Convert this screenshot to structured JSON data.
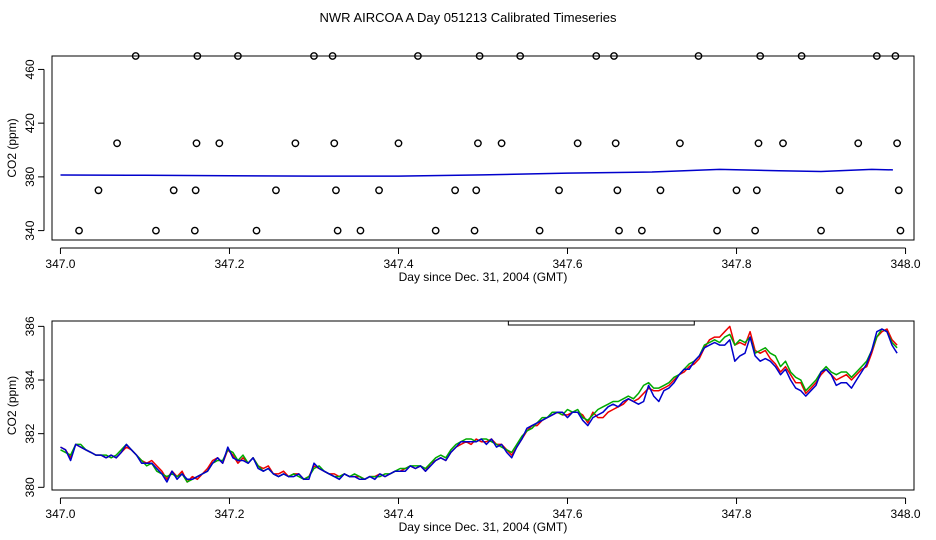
{
  "title": "NWR AIRCOA A  Day 051213  Calibrated Timeseries",
  "chart_data": [
    {
      "type": "scatter",
      "xlabel": "Day since Dec. 31, 2004 (GMT)",
      "ylabel": "CO2 (ppm)",
      "xlim": [
        346.99,
        348.01
      ],
      "ylim": [
        333,
        470
      ],
      "x_ticks": [
        "347.0",
        "347.2",
        "347.4",
        "347.6",
        "347.8",
        "348.0"
      ],
      "y_ticks": [
        "340",
        "380",
        "420",
        "460"
      ],
      "grid": false,
      "series": [
        {
          "marker": "open-circle",
          "color": "#000000",
          "points": [
            [
              347.022,
              340
            ],
            [
              347.045,
              370
            ],
            [
              347.067,
              405
            ],
            [
              347.089,
              470
            ],
            [
              347.113,
              340
            ],
            [
              347.134,
              370
            ],
            [
              347.159,
              340
            ],
            [
              347.16,
              370
            ],
            [
              347.161,
              405
            ],
            [
              347.162,
              470
            ],
            [
              347.188,
              405
            ],
            [
              347.21,
              470
            ],
            [
              347.232,
              340
            ],
            [
              347.255,
              370
            ],
            [
              347.278,
              405
            ],
            [
              347.3,
              470
            ],
            [
              347.322,
              470
            ],
            [
              347.324,
              405
            ],
            [
              347.326,
              370
            ],
            [
              347.328,
              340
            ],
            [
              347.355,
              340
            ],
            [
              347.377,
              370
            ],
            [
              347.4,
              405
            ],
            [
              347.423,
              470
            ],
            [
              347.444,
              340
            ],
            [
              347.467,
              370
            ],
            [
              347.49,
              340
            ],
            [
              347.492,
              370
            ],
            [
              347.494,
              405
            ],
            [
              347.496,
              470
            ],
            [
              347.522,
              405
            ],
            [
              347.544,
              470
            ],
            [
              347.567,
              340
            ],
            [
              347.59,
              370
            ],
            [
              347.612,
              405
            ],
            [
              347.634,
              470
            ],
            [
              347.655,
              470
            ],
            [
              347.657,
              405
            ],
            [
              347.659,
              370
            ],
            [
              347.661,
              340
            ],
            [
              347.688,
              340
            ],
            [
              347.71,
              370
            ],
            [
              347.733,
              405
            ],
            [
              347.755,
              470
            ],
            [
              347.777,
              340
            ],
            [
              347.8,
              370
            ],
            [
              347.822,
              340
            ],
            [
              347.824,
              370
            ],
            [
              347.826,
              405
            ],
            [
              347.828,
              470
            ],
            [
              347.855,
              405
            ],
            [
              347.877,
              470
            ],
            [
              347.9,
              340
            ],
            [
              347.922,
              370
            ],
            [
              347.944,
              405
            ],
            [
              347.966,
              470
            ],
            [
              347.988,
              470
            ],
            [
              347.99,
              405
            ],
            [
              347.992,
              370
            ],
            [
              347.994,
              340
            ]
          ]
        },
        {
          "marker": "line",
          "color": "#0000cc",
          "points": [
            [
              347.0,
              381.4
            ],
            [
              347.1,
              381.2
            ],
            [
              347.2,
              380.9
            ],
            [
              347.3,
              380.6
            ],
            [
              347.4,
              380.6
            ],
            [
              347.5,
              381.5
            ],
            [
              347.6,
              382.8
            ],
            [
              347.7,
              383.6
            ],
            [
              347.78,
              385.6
            ],
            [
              347.85,
              384.6
            ],
            [
              347.9,
              384.0
            ],
            [
              347.96,
              385.6
            ],
            [
              347.985,
              385.2
            ]
          ]
        }
      ]
    },
    {
      "type": "line",
      "xlabel": "Day since Dec. 31, 2004 (GMT)",
      "ylabel": "CO2 (ppm)",
      "xlim": [
        346.99,
        348.01
      ],
      "ylim": [
        379.9,
        386.2
      ],
      "x_ticks": [
        "347.0",
        "347.2",
        "347.4",
        "347.6",
        "347.8",
        "348.0"
      ],
      "y_ticks": [
        "380",
        "382",
        "384",
        "386"
      ],
      "grid": false,
      "marker_bar": [
        347.53,
        347.75
      ],
      "x": [
        347.0,
        347.006,
        347.012,
        347.018,
        347.024,
        347.03,
        347.036,
        347.042,
        347.048,
        347.054,
        347.06,
        347.066,
        347.072,
        347.078,
        347.084,
        347.09,
        347.096,
        347.102,
        347.108,
        347.114,
        347.12,
        347.126,
        347.132,
        347.138,
        347.144,
        347.15,
        347.156,
        347.162,
        347.168,
        347.174,
        347.18,
        347.186,
        347.192,
        347.198,
        347.204,
        347.21,
        347.216,
        347.222,
        347.228,
        347.234,
        347.24,
        347.246,
        347.252,
        347.258,
        347.264,
        347.27,
        347.276,
        347.282,
        347.288,
        347.294,
        347.3,
        347.306,
        347.312,
        347.318,
        347.324,
        347.33,
        347.336,
        347.342,
        347.348,
        347.354,
        347.36,
        347.366,
        347.372,
        347.378,
        347.384,
        347.39,
        347.396,
        347.402,
        347.408,
        347.414,
        347.42,
        347.426,
        347.432,
        347.438,
        347.444,
        347.45,
        347.456,
        347.462,
        347.468,
        347.474,
        347.48,
        347.486,
        347.492,
        347.498,
        347.504,
        347.51,
        347.516,
        347.522,
        347.528,
        347.534,
        347.54,
        347.546,
        347.552,
        347.558,
        347.564,
        347.57,
        347.576,
        347.582,
        347.588,
        347.594,
        347.6,
        347.606,
        347.612,
        347.618,
        347.624,
        347.63,
        347.636,
        347.642,
        347.648,
        347.654,
        347.66,
        347.666,
        347.672,
        347.678,
        347.684,
        347.69,
        347.696,
        347.702,
        347.708,
        347.714,
        347.72,
        347.726,
        347.732,
        347.738,
        347.744,
        347.75,
        347.756,
        347.762,
        347.768,
        347.774,
        347.78,
        347.786,
        347.792,
        347.798,
        347.804,
        347.81,
        347.816,
        347.822,
        347.828,
        347.834,
        347.84,
        347.846,
        347.852,
        347.858,
        347.864,
        347.87,
        347.876,
        347.882,
        347.888,
        347.894,
        347.9,
        347.906,
        347.912,
        347.918,
        347.924,
        347.93,
        347.936,
        347.942,
        347.948,
        347.954,
        347.96,
        347.966,
        347.972,
        347.978,
        347.984,
        347.99
      ],
      "series": [
        {
          "color": "#ee0000",
          "values": [
            381.5,
            381.4,
            381.1,
            381.6,
            381.5,
            381.4,
            381.3,
            381.2,
            381.2,
            381.1,
            381.2,
            381.1,
            381.3,
            381.5,
            381.4,
            381.2,
            381.0,
            380.9,
            381.0,
            380.8,
            380.6,
            380.3,
            380.6,
            380.4,
            380.6,
            380.2,
            380.4,
            380.3,
            380.5,
            380.7,
            381.0,
            381.1,
            380.9,
            381.4,
            381.2,
            380.9,
            381.1,
            380.9,
            381.1,
            380.8,
            380.7,
            380.8,
            380.5,
            380.5,
            380.6,
            380.4,
            380.5,
            380.5,
            380.3,
            380.4,
            380.8,
            380.7,
            380.6,
            380.5,
            380.5,
            380.4,
            380.5,
            380.4,
            380.4,
            380.4,
            380.3,
            380.4,
            380.4,
            380.5,
            380.4,
            380.5,
            380.6,
            380.6,
            380.7,
            380.8,
            380.7,
            380.8,
            380.6,
            380.9,
            381.0,
            381.1,
            381.0,
            381.3,
            381.5,
            381.6,
            381.7,
            381.6,
            381.8,
            381.7,
            381.7,
            381.8,
            381.6,
            381.6,
            381.4,
            381.2,
            381.5,
            381.8,
            382.1,
            382.3,
            382.3,
            382.5,
            382.6,
            382.7,
            382.8,
            382.7,
            382.7,
            382.8,
            382.8,
            382.7,
            382.4,
            382.8,
            382.6,
            382.6,
            382.8,
            382.9,
            383.0,
            383.1,
            383.3,
            383.2,
            383.3,
            383.5,
            383.7,
            383.6,
            383.6,
            383.7,
            383.8,
            384.0,
            384.2,
            384.3,
            384.5,
            384.6,
            384.8,
            385.2,
            385.5,
            385.6,
            385.6,
            385.8,
            386.0,
            385.3,
            385.4,
            385.3,
            385.8,
            385.1,
            385.0,
            385.1,
            384.8,
            384.6,
            384.3,
            384.5,
            384.2,
            383.9,
            383.9,
            383.5,
            383.7,
            383.9,
            384.2,
            384.4,
            384.2,
            384.0,
            384.1,
            384.2,
            384.0,
            384.2,
            384.4,
            384.5,
            385.0,
            385.6,
            385.8,
            385.9,
            385.5,
            385.3
          ],
          "name": ""
        },
        {
          "color": "#00aa00",
          "values": [
            381.4,
            381.3,
            381.2,
            381.6,
            381.6,
            381.4,
            381.3,
            381.2,
            381.2,
            381.2,
            381.1,
            381.2,
            381.4,
            381.6,
            381.4,
            381.2,
            381.0,
            380.8,
            380.9,
            380.6,
            380.5,
            380.4,
            380.5,
            380.4,
            380.5,
            380.2,
            380.3,
            380.4,
            380.5,
            380.6,
            380.9,
            381.0,
            381.0,
            381.4,
            381.3,
            381.0,
            381.2,
            380.9,
            381.1,
            380.8,
            380.6,
            380.7,
            380.5,
            380.4,
            380.5,
            380.4,
            380.5,
            380.4,
            380.3,
            380.4,
            380.7,
            380.8,
            380.6,
            380.5,
            380.4,
            380.4,
            380.5,
            380.4,
            380.5,
            380.4,
            380.3,
            380.4,
            380.4,
            380.4,
            380.5,
            380.5,
            380.6,
            380.7,
            380.7,
            380.8,
            380.8,
            380.8,
            380.7,
            380.9,
            381.1,
            381.2,
            381.1,
            381.4,
            381.6,
            381.7,
            381.8,
            381.8,
            381.7,
            381.8,
            381.8,
            381.7,
            381.6,
            381.5,
            381.4,
            381.3,
            381.6,
            381.9,
            382.1,
            382.2,
            382.4,
            382.6,
            382.6,
            382.8,
            382.8,
            382.7,
            382.9,
            382.8,
            382.9,
            382.6,
            382.5,
            382.7,
            382.9,
            383.0,
            383.1,
            383.2,
            383.2,
            383.3,
            383.4,
            383.3,
            383.5,
            383.8,
            383.9,
            383.7,
            383.7,
            383.8,
            383.9,
            384.1,
            384.2,
            384.4,
            384.6,
            384.7,
            384.9,
            385.3,
            385.4,
            385.5,
            385.4,
            385.6,
            385.7,
            385.3,
            385.5,
            385.4,
            385.6,
            385.0,
            385.1,
            385.2,
            385.0,
            384.9,
            384.5,
            384.7,
            384.3,
            384.1,
            384.0,
            383.6,
            383.8,
            384.0,
            384.3,
            384.5,
            384.3,
            384.2,
            384.3,
            384.3,
            384.1,
            384.3,
            384.5,
            384.7,
            385.1,
            385.6,
            385.9,
            385.8,
            385.4,
            385.2
          ],
          "name": ""
        },
        {
          "color": "#0000cc",
          "values": [
            381.5,
            381.4,
            381.0,
            381.6,
            381.5,
            381.4,
            381.3,
            381.2,
            381.2,
            381.1,
            381.2,
            381.1,
            381.3,
            381.6,
            381.4,
            381.2,
            380.9,
            380.9,
            380.9,
            380.7,
            380.5,
            380.2,
            380.6,
            380.3,
            380.5,
            380.3,
            380.3,
            380.4,
            380.5,
            380.6,
            380.9,
            381.1,
            380.9,
            381.5,
            381.1,
            381.0,
            381.0,
            380.9,
            381.1,
            380.7,
            380.6,
            380.7,
            380.5,
            380.4,
            380.5,
            380.4,
            380.4,
            380.5,
            380.3,
            380.3,
            380.9,
            380.7,
            380.6,
            380.5,
            380.4,
            380.3,
            380.5,
            380.4,
            380.4,
            380.3,
            380.3,
            380.4,
            380.3,
            380.5,
            380.4,
            380.5,
            380.6,
            380.6,
            380.6,
            380.8,
            380.7,
            380.8,
            380.6,
            380.8,
            381.0,
            381.1,
            381.0,
            381.3,
            381.5,
            381.7,
            381.7,
            381.7,
            381.7,
            381.8,
            381.6,
            381.8,
            381.5,
            381.6,
            381.3,
            381.1,
            381.5,
            381.8,
            382.2,
            382.3,
            382.4,
            382.5,
            382.6,
            382.7,
            382.8,
            382.8,
            382.6,
            382.8,
            382.8,
            382.5,
            382.3,
            382.6,
            382.7,
            382.8,
            383.0,
            383.1,
            383.0,
            383.2,
            383.3,
            383.2,
            383.1,
            383.2,
            383.8,
            383.4,
            383.2,
            383.6,
            383.7,
            383.9,
            384.2,
            384.4,
            384.4,
            384.7,
            384.9,
            385.2,
            385.3,
            385.4,
            385.3,
            385.3,
            385.5,
            384.7,
            384.9,
            385.0,
            385.6,
            384.9,
            384.7,
            384.8,
            384.7,
            384.5,
            384.2,
            384.4,
            384.0,
            383.7,
            383.6,
            383.4,
            383.6,
            383.8,
            384.3,
            384.4,
            384.2,
            383.8,
            383.9,
            383.9,
            383.7,
            384.0,
            384.3,
            384.6,
            385.1,
            385.8,
            385.9,
            385.8,
            385.3,
            385.0
          ],
          "name": ""
        }
      ]
    }
  ]
}
